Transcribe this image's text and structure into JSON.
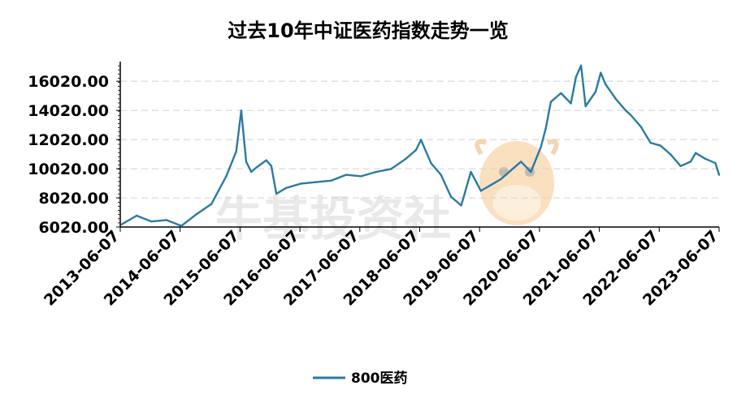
{
  "chart_data": {
    "type": "line",
    "title": "过去10年中证医药指数走势一览",
    "xlabel": "",
    "ylabel": "",
    "x_ticks": [
      "2013-06-07",
      "2014-06-07",
      "2015-06-07",
      "2016-06-07",
      "2017-06-07",
      "2018-06-07",
      "2019-06-07",
      "2020-06-07",
      "2021-06-07",
      "2022-06-07",
      "2023-06-07"
    ],
    "y_ticks": [
      "6020.00",
      "8020.00",
      "10020.00",
      "12020.00",
      "14020.00",
      "16020.00"
    ],
    "ylim": [
      6020,
      16920
    ],
    "grid": "horizontal-dashed",
    "legend_position": "bottom",
    "series": [
      {
        "name": "800医药",
        "color": "#2b7aa1",
        "x": [
          "2013-06",
          "2013-09",
          "2013-12",
          "2014-03",
          "2014-06",
          "2014-09",
          "2014-12",
          "2015-03",
          "2015-05",
          "2015-06",
          "2015-07",
          "2015-08",
          "2015-09",
          "2015-11",
          "2015-12",
          "2016-01",
          "2016-03",
          "2016-06",
          "2016-09",
          "2016-12",
          "2017-03",
          "2017-06",
          "2017-09",
          "2017-12",
          "2018-03",
          "2018-05",
          "2018-06",
          "2018-08",
          "2018-10",
          "2018-12",
          "2019-02",
          "2019-04",
          "2019-06",
          "2019-08",
          "2019-10",
          "2019-12",
          "2020-02",
          "2020-04",
          "2020-06",
          "2020-07",
          "2020-08",
          "2020-10",
          "2020-12",
          "2021-01",
          "2021-02",
          "2021-03",
          "2021-05",
          "2021-06",
          "2021-07",
          "2021-09",
          "2021-11",
          "2021-12",
          "2022-02",
          "2022-04",
          "2022-06",
          "2022-08",
          "2022-10",
          "2022-12",
          "2023-01",
          "2023-03",
          "2023-05",
          "2023-06"
        ],
        "values": [
          6200,
          6800,
          6400,
          6500,
          6100,
          6900,
          7600,
          9500,
          11200,
          14000,
          10500,
          9800,
          10100,
          10600,
          10200,
          8300,
          8700,
          9000,
          9100,
          9200,
          9600,
          9500,
          9800,
          10000,
          10700,
          11300,
          12000,
          10400,
          9600,
          8100,
          7500,
          9800,
          8500,
          8900,
          9300,
          9900,
          10500,
          9800,
          11500,
          12800,
          14600,
          15200,
          14500,
          16300,
          17100,
          14300,
          15300,
          16600,
          15800,
          14800,
          14000,
          13700,
          12900,
          11800,
          11600,
          11000,
          10200,
          10500,
          11100,
          10700,
          10400,
          9600
        ]
      }
    ]
  },
  "legend": {
    "label": "800医药"
  },
  "watermark": {
    "text": "牛基投资社"
  }
}
